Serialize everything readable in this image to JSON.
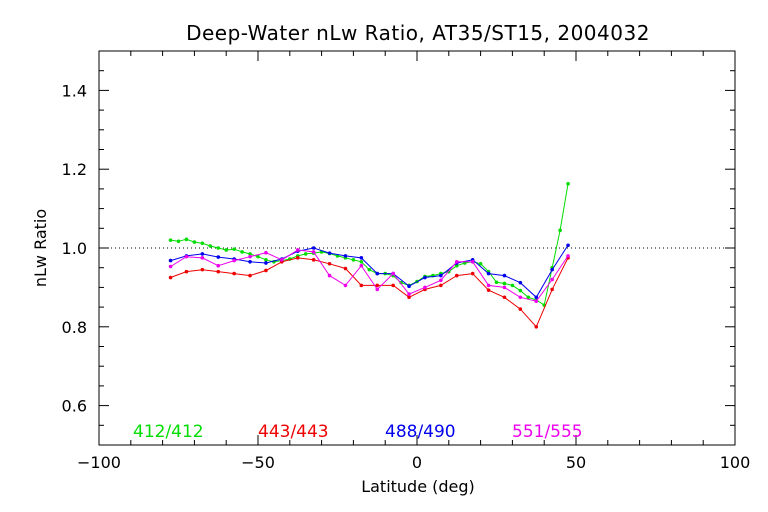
{
  "chart_data": {
    "type": "line",
    "title": "Deep-Water nLw Ratio, AT35/ST15, 2004032",
    "xlabel": "Latitude (deg)",
    "ylabel": "nLw Ratio",
    "xlim": [
      -100,
      100
    ],
    "ylim": [
      0.5,
      1.5
    ],
    "x_ticks": [
      -100,
      -50,
      0,
      50,
      100
    ],
    "x_tick_labels": [
      "−100",
      "−50",
      "0",
      "50",
      "100"
    ],
    "y_ticks": [
      0.6,
      0.8,
      1.0,
      1.2,
      1.4
    ],
    "y_tick_labels": [
      "0.6",
      "0.8",
      "1.0",
      "1.2",
      "1.4"
    ],
    "reference_line": 1.0,
    "series": [
      {
        "name": "412/412",
        "color": "#00dd00",
        "x": [
          -77.5,
          -75,
          -72.5,
          -70,
          -67.5,
          -65,
          -62.5,
          -60,
          -57.5,
          -55,
          -52.5,
          -50,
          -47.5,
          -45,
          -42.5,
          -40,
          -37.5,
          -35,
          -32.5,
          -30,
          -27.5,
          -25,
          -22.5,
          -20,
          -17.5,
          -15,
          -12.5,
          -10,
          -7.5,
          -5,
          -2.5,
          0,
          2.5,
          5,
          7.5,
          10,
          12.5,
          15,
          17.5,
          20,
          22.5,
          25,
          27.5,
          30,
          32.5,
          35,
          37.5,
          40,
          42.5,
          45,
          47.5
        ],
        "y": [
          1.02,
          1.017,
          1.022,
          1.015,
          1.012,
          1.005,
          1.0,
          0.995,
          0.997,
          0.99,
          0.985,
          0.978,
          0.97,
          0.965,
          0.968,
          0.972,
          0.98,
          0.985,
          0.987,
          0.99,
          0.986,
          0.98,
          0.975,
          0.97,
          0.965,
          0.945,
          0.935,
          0.935,
          0.93,
          0.912,
          0.905,
          0.915,
          0.928,
          0.93,
          0.935,
          0.94,
          0.955,
          0.962,
          0.965,
          0.96,
          0.94,
          0.913,
          0.91,
          0.905,
          0.892,
          0.875,
          0.868,
          0.855,
          0.95,
          1.045,
          1.163
        ]
      },
      {
        "name": "443/443",
        "color": "#ee0000",
        "x": [
          -77.5,
          -72.5,
          -67.5,
          -62.5,
          -57.5,
          -52.5,
          -47.5,
          -42.5,
          -37.5,
          -32.5,
          -27.5,
          -22.5,
          -17.5,
          -12.5,
          -7.5,
          -2.5,
          2.5,
          7.5,
          12.5,
          17.5,
          22.5,
          27.5,
          32.5,
          37.5,
          42.5,
          47.5
        ],
        "y": [
          0.925,
          0.94,
          0.945,
          0.94,
          0.935,
          0.93,
          0.943,
          0.965,
          0.975,
          0.97,
          0.96,
          0.948,
          0.905,
          0.905,
          0.905,
          0.875,
          0.895,
          0.905,
          0.93,
          0.935,
          0.893,
          0.875,
          0.845,
          0.8,
          0.895,
          0.975
        ]
      },
      {
        "name": "488/490",
        "color": "#0000ee",
        "x": [
          -77.5,
          -72.5,
          -67.5,
          -62.5,
          -57.5,
          -52.5,
          -47.5,
          -42.5,
          -37.5,
          -32.5,
          -27.5,
          -22.5,
          -17.5,
          -12.5,
          -7.5,
          -2.5,
          2.5,
          7.5,
          12.5,
          17.5,
          22.5,
          27.5,
          32.5,
          37.5,
          42.5,
          47.5
        ],
        "y": [
          0.968,
          0.98,
          0.985,
          0.977,
          0.972,
          0.965,
          0.962,
          0.972,
          0.992,
          1.0,
          0.987,
          0.98,
          0.975,
          0.935,
          0.935,
          0.903,
          0.925,
          0.93,
          0.962,
          0.97,
          0.935,
          0.93,
          0.912,
          0.875,
          0.945,
          1.007
        ]
      },
      {
        "name": "551/555",
        "color": "#ee00ee",
        "x": [
          -77.5,
          -72.5,
          -67.5,
          -62.5,
          -57.5,
          -52.5,
          -47.5,
          -42.5,
          -37.5,
          -32.5,
          -27.5,
          -22.5,
          -17.5,
          -12.5,
          -7.5,
          -2.5,
          2.5,
          7.5,
          12.5,
          17.5,
          22.5,
          27.5,
          32.5,
          37.5,
          42.5,
          47.5
        ],
        "y": [
          0.953,
          0.978,
          0.975,
          0.955,
          0.968,
          0.978,
          0.988,
          0.97,
          0.995,
          0.99,
          0.93,
          0.905,
          0.955,
          0.895,
          0.935,
          0.883,
          0.9,
          0.918,
          0.965,
          0.965,
          0.905,
          0.9,
          0.875,
          0.865,
          0.92,
          0.98
        ]
      }
    ],
    "legend_position": "bottom-inside"
  }
}
